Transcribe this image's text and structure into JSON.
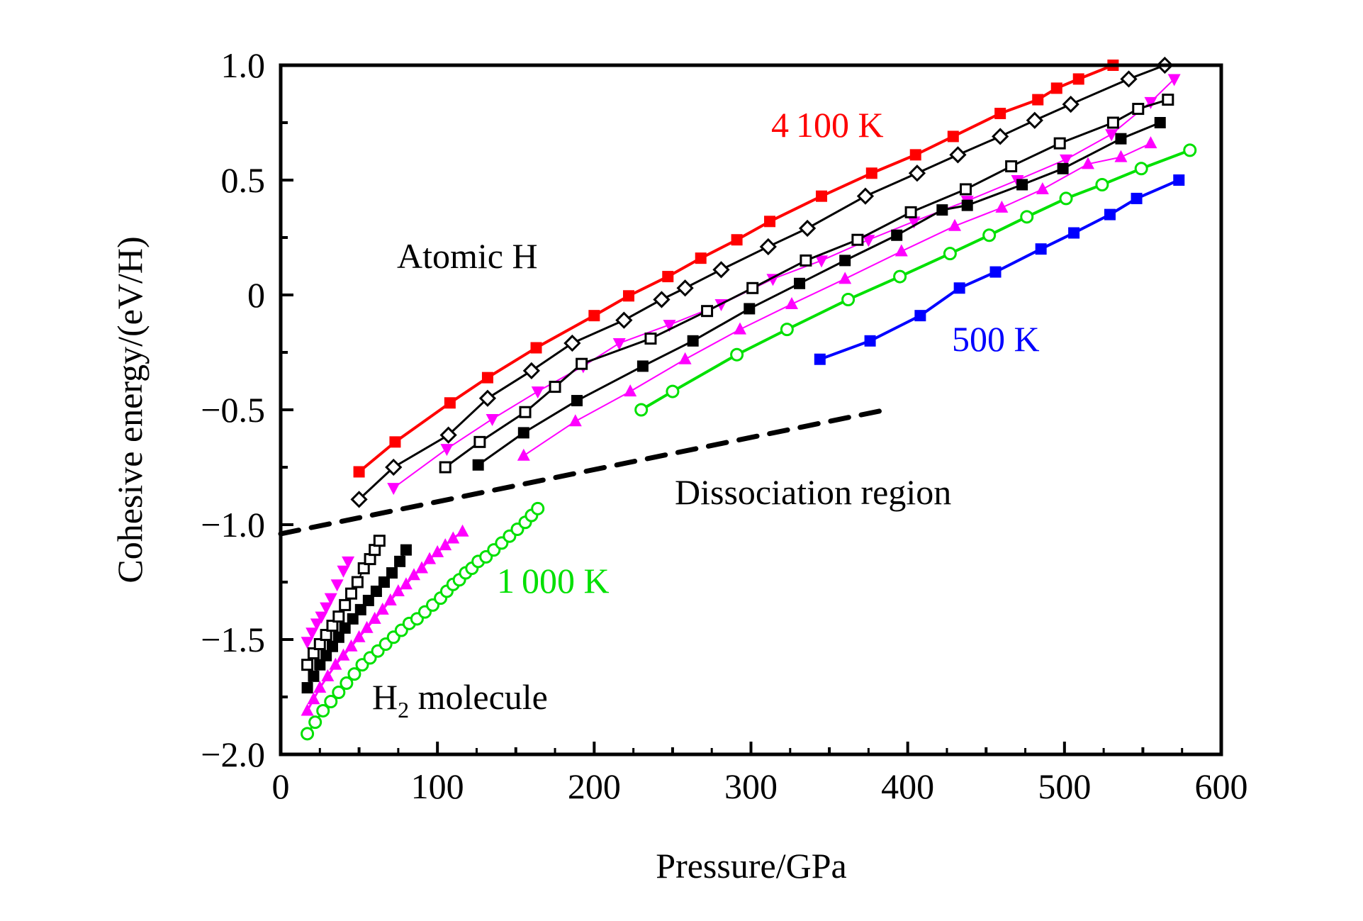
{
  "chart_data": {
    "type": "line",
    "title": "",
    "xlabel": "Pressure/GPa",
    "ylabel": "Cohesive energy/(eV/H)",
    "xlim": [
      0,
      600
    ],
    "ylim": [
      -2.0,
      1.0
    ],
    "xticks": [
      0,
      100,
      200,
      300,
      400,
      500,
      600
    ],
    "xtick_labels": [
      "0",
      "100",
      "200",
      "300",
      "400",
      "500",
      "600"
    ],
    "yticks": [
      -2.0,
      -1.5,
      -1.0,
      -0.5,
      0,
      0.5,
      1.0
    ],
    "ytick_labels": [
      "−2.0",
      "−1.5",
      "−1.0",
      "−0.5",
      "0",
      "0.5",
      "1.0"
    ],
    "grid": false,
    "legend": "none",
    "annotations": [
      {
        "text": "4 100 K",
        "x": 316,
        "y": 0.75,
        "color": "#ff0000"
      },
      {
        "text": "500 K",
        "x": 430,
        "y": -0.22,
        "color": "#0000ff"
      },
      {
        "text": "1 000 K",
        "x": 138,
        "y": -1.28,
        "color": "#00e000"
      },
      {
        "text": "Atomic H",
        "x": 74,
        "y": 0.14,
        "color": "#000000"
      },
      {
        "text": "Dissociation region",
        "x": 252,
        "y": -0.88,
        "color": "#000000"
      },
      {
        "text": "H",
        "sub": "2",
        "rest": " molecule",
        "x": 58,
        "y": -1.82,
        "color": "#000000"
      }
    ],
    "dissociation_line": {
      "x": [
        0,
        386
      ],
      "y": [
        -1.04,
        -0.5
      ],
      "style": "dashed",
      "color": "#000000"
    },
    "series": [
      {
        "name": "4100 K",
        "color": "#ff0000",
        "marker": "square-filled",
        "line_width": 4,
        "x": [
          50,
          73,
          108,
          132,
          163,
          200,
          222,
          247,
          268,
          291,
          312,
          345,
          377,
          405,
          429,
          459,
          483,
          495,
          509,
          531
        ],
        "y": [
          -0.77,
          -0.64,
          -0.47,
          -0.36,
          -0.23,
          -0.09,
          -0.004,
          0.08,
          0.16,
          0.24,
          0.32,
          0.43,
          0.53,
          0.61,
          0.69,
          0.79,
          0.85,
          0.9,
          0.94,
          1.0
        ]
      },
      {
        "name": "open-diamond",
        "color": "#000000",
        "marker": "diamond-open",
        "line_width": 3,
        "x": [
          50,
          72,
          107,
          132,
          160,
          186,
          219,
          243,
          258,
          281,
          311,
          336,
          373,
          406,
          432,
          459,
          481,
          504,
          541,
          564
        ],
        "y": [
          -0.89,
          -0.75,
          -0.61,
          -0.45,
          -0.33,
          -0.21,
          -0.11,
          -0.02,
          0.03,
          0.11,
          0.21,
          0.29,
          0.43,
          0.53,
          0.61,
          0.69,
          0.76,
          0.83,
          0.94,
          1.0
        ]
      },
      {
        "name": "magenta-down-triangle",
        "color": "#ff00ff",
        "marker": "triangle-down-filled",
        "line_width": 2,
        "x": [
          72,
          106,
          135,
          164,
          193,
          216,
          248,
          281,
          314,
          345,
          375,
          404,
          438,
          470,
          501,
          530,
          555,
          570
        ],
        "y": [
          -0.84,
          -0.67,
          -0.54,
          -0.42,
          -0.31,
          -0.21,
          -0.13,
          -0.04,
          0.07,
          0.15,
          0.24,
          0.32,
          0.41,
          0.5,
          0.59,
          0.7,
          0.84,
          0.94
        ]
      },
      {
        "name": "open-square",
        "color": "#000000",
        "marker": "square-open",
        "line_width": 3,
        "x": [
          105,
          127,
          156,
          175,
          192,
          236,
          272,
          301,
          335,
          368,
          402,
          437,
          466,
          497,
          531,
          547,
          566
        ],
        "y": [
          -0.75,
          -0.64,
          -0.51,
          -0.4,
          -0.3,
          -0.19,
          -0.07,
          0.03,
          0.15,
          0.24,
          0.36,
          0.46,
          0.56,
          0.66,
          0.75,
          0.81,
          0.85
        ]
      },
      {
        "name": "filled-square",
        "color": "#000000",
        "marker": "square-filled",
        "line_width": 3,
        "x": [
          126,
          155,
          189,
          231,
          263,
          299,
          331,
          360,
          393,
          422,
          438,
          473,
          499,
          536,
          561
        ],
        "y": [
          -0.74,
          -0.6,
          -0.46,
          -0.31,
          -0.2,
          -0.06,
          0.05,
          0.15,
          0.26,
          0.37,
          0.39,
          0.48,
          0.55,
          0.68,
          0.75
        ]
      },
      {
        "name": "magenta-up-triangle",
        "color": "#ff00ff",
        "marker": "triangle-up-filled",
        "line_width": 2,
        "x": [
          155,
          188,
          223,
          258,
          293,
          326,
          360,
          396,
          430,
          460,
          486,
          515,
          536,
          555
        ],
        "y": [
          -0.7,
          -0.55,
          -0.42,
          -0.28,
          -0.15,
          -0.04,
          0.07,
          0.19,
          0.3,
          0.38,
          0.46,
          0.57,
          0.6,
          0.66
        ]
      },
      {
        "name": "1000 K",
        "color": "#00e000",
        "marker": "circle-open",
        "line_width": 4,
        "x": [
          230,
          250,
          291,
          323,
          362,
          395,
          427,
          452,
          476,
          501,
          524,
          549,
          580
        ],
        "y": [
          -0.5,
          -0.42,
          -0.26,
          -0.15,
          -0.02,
          0.08,
          0.18,
          0.26,
          0.34,
          0.42,
          0.48,
          0.55,
          0.63
        ]
      },
      {
        "name": "500 K",
        "color": "#0000ff",
        "marker": "square-filled",
        "line_width": 4,
        "x": [
          344,
          376,
          408,
          433,
          456,
          485,
          506,
          529,
          546,
          573
        ],
        "y": [
          -0.28,
          -0.2,
          -0.09,
          0.03,
          0.1,
          0.2,
          0.27,
          0.35,
          0.42,
          0.5
        ]
      },
      {
        "name": "H2-magenta-down-triangle",
        "color": "#ff00ff",
        "marker": "triangle-down-filled",
        "line_width": 0,
        "x": [
          17,
          20,
          23,
          26,
          29,
          32,
          36,
          40,
          43
        ],
        "y": [
          -1.51,
          -1.47,
          -1.43,
          -1.4,
          -1.36,
          -1.32,
          -1.26,
          -1.2,
          -1.16
        ]
      },
      {
        "name": "H2-open-square",
        "color": "#000000",
        "marker": "square-open",
        "line_width": 2,
        "x": [
          17,
          21,
          25,
          29,
          33,
          37,
          41,
          45,
          49,
          53,
          57,
          60,
          63
        ],
        "y": [
          -1.61,
          -1.56,
          -1.52,
          -1.48,
          -1.44,
          -1.4,
          -1.35,
          -1.3,
          -1.25,
          -1.19,
          -1.15,
          -1.11,
          -1.07
        ]
      },
      {
        "name": "H2-filled-square",
        "color": "#000000",
        "marker": "square-filled",
        "line_width": 3,
        "x": [
          17,
          21,
          25,
          29,
          33,
          37,
          41,
          46,
          51,
          56,
          61,
          66,
          71,
          76,
          80
        ],
        "y": [
          -1.71,
          -1.66,
          -1.61,
          -1.57,
          -1.53,
          -1.49,
          -1.45,
          -1.41,
          -1.37,
          -1.33,
          -1.29,
          -1.25,
          -1.21,
          -1.16,
          -1.11
        ]
      },
      {
        "name": "H2-magenta-up-triangle",
        "color": "#ff00ff",
        "marker": "triangle-up-filled",
        "line_width": 3,
        "x": [
          17,
          21,
          25,
          30,
          35,
          40,
          45,
          50,
          55,
          60,
          65,
          70,
          75,
          80,
          85,
          90,
          95,
          100,
          105,
          110,
          116
        ],
        "y": [
          -1.81,
          -1.76,
          -1.71,
          -1.66,
          -1.61,
          -1.57,
          -1.53,
          -1.49,
          -1.45,
          -1.41,
          -1.37,
          -1.33,
          -1.29,
          -1.26,
          -1.22,
          -1.19,
          -1.15,
          -1.12,
          -1.09,
          -1.06,
          -1.03
        ]
      },
      {
        "name": "H2-green-circle",
        "color": "#00e000",
        "marker": "circle-open",
        "line_width": 3,
        "x": [
          17,
          22,
          27,
          32,
          37,
          42,
          47,
          52,
          57,
          62,
          67,
          72,
          77,
          82,
          87,
          92,
          97,
          102,
          106,
          110,
          114,
          118,
          122,
          126,
          131,
          136,
          141,
          146,
          151,
          156,
          160,
          164
        ],
        "y": [
          -1.91,
          -1.86,
          -1.81,
          -1.77,
          -1.73,
          -1.69,
          -1.65,
          -1.61,
          -1.58,
          -1.55,
          -1.52,
          -1.49,
          -1.46,
          -1.43,
          -1.41,
          -1.38,
          -1.35,
          -1.32,
          -1.29,
          -1.26,
          -1.24,
          -1.21,
          -1.19,
          -1.16,
          -1.14,
          -1.11,
          -1.08,
          -1.05,
          -1.02,
          -0.99,
          -0.96,
          -0.93
        ]
      }
    ]
  }
}
